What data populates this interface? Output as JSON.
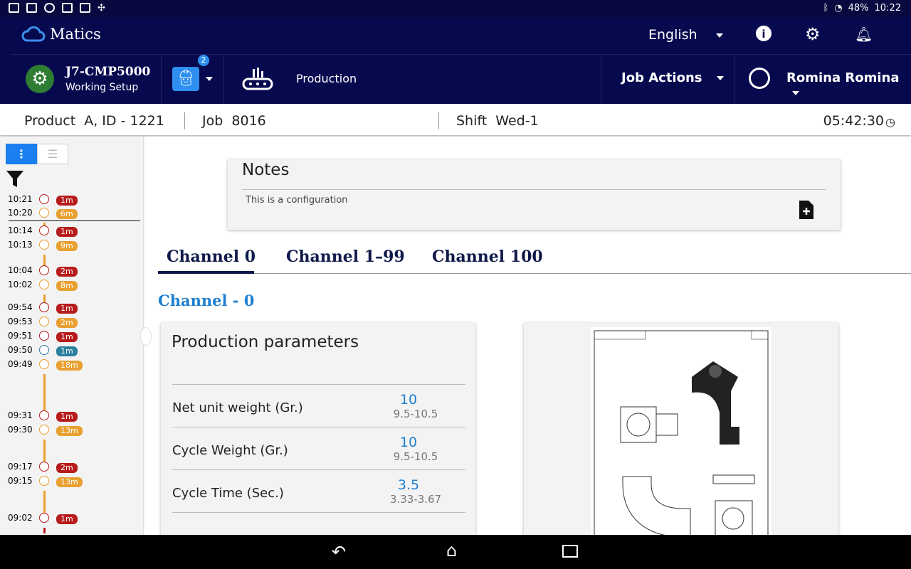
{
  "status_bar": {
    "battery": "48%",
    "time": "10:22"
  },
  "header": {
    "app_name": "Matics",
    "language": "English",
    "machine_name": "J7-CMP5000",
    "machine_status": "Working Setup",
    "operator_badge": "2",
    "department": "Production",
    "job_actions": "Job Actions",
    "user_name": "Romina Romina"
  },
  "info_bar": {
    "product_label": "Product",
    "product_value": "A, ID - 1221",
    "job_label": "Job",
    "job_value": "8016",
    "shift_label": "Shift",
    "shift_value": "Wed-1",
    "timer": "05:42:30"
  },
  "timeline": [
    {
      "time": "10:21",
      "duration": "1m",
      "status": "red"
    },
    {
      "time": "10:20",
      "duration": "6m",
      "status": "orange"
    },
    {
      "time": "10:14",
      "duration": "1m",
      "status": "red"
    },
    {
      "time": "10:13",
      "duration": "9m",
      "status": "orange"
    },
    {
      "time": "10:04",
      "duration": "2m",
      "status": "red"
    },
    {
      "time": "10:02",
      "duration": "8m",
      "status": "orange"
    },
    {
      "time": "09:54",
      "duration": "1m",
      "status": "red"
    },
    {
      "time": "09:53",
      "duration": "2m",
      "status": "orange"
    },
    {
      "time": "09:51",
      "duration": "1m",
      "status": "red"
    },
    {
      "time": "09:50",
      "duration": "1m",
      "status": "teal"
    },
    {
      "time": "09:49",
      "duration": "18m",
      "status": "orange"
    },
    {
      "time": "09:31",
      "duration": "1m",
      "status": "red"
    },
    {
      "time": "09:30",
      "duration": "13m",
      "status": "orange"
    },
    {
      "time": "09:17",
      "duration": "2m",
      "status": "red"
    },
    {
      "time": "09:15",
      "duration": "13m",
      "status": "orange"
    },
    {
      "time": "09:02",
      "duration": "1m",
      "status": "red"
    }
  ],
  "colors": {
    "red": "#b71c1c",
    "orange": "#e8a030",
    "teal": "#2a7f9e",
    "header": "#07094f",
    "accent": "#1e7fd0"
  },
  "notes": {
    "title": "Notes",
    "text": "This is a configuration"
  },
  "tabs": [
    {
      "label": "Channel 0",
      "active": true
    },
    {
      "label": "Channel 1–99"
    },
    {
      "label": "Channel 100"
    }
  ],
  "channel_title": "Channel - 0",
  "production_parameters": {
    "title": "Production parameters",
    "rows": [
      {
        "label": "Net unit weight (Gr.)",
        "value": "10",
        "range": "9.5-10.5"
      },
      {
        "label": "Cycle Weight (Gr.)",
        "value": "10",
        "range": "9.5-10.5"
      },
      {
        "label": "Cycle Time (Sec.)",
        "value": "3.5",
        "range": "3.33-3.67"
      }
    ]
  }
}
